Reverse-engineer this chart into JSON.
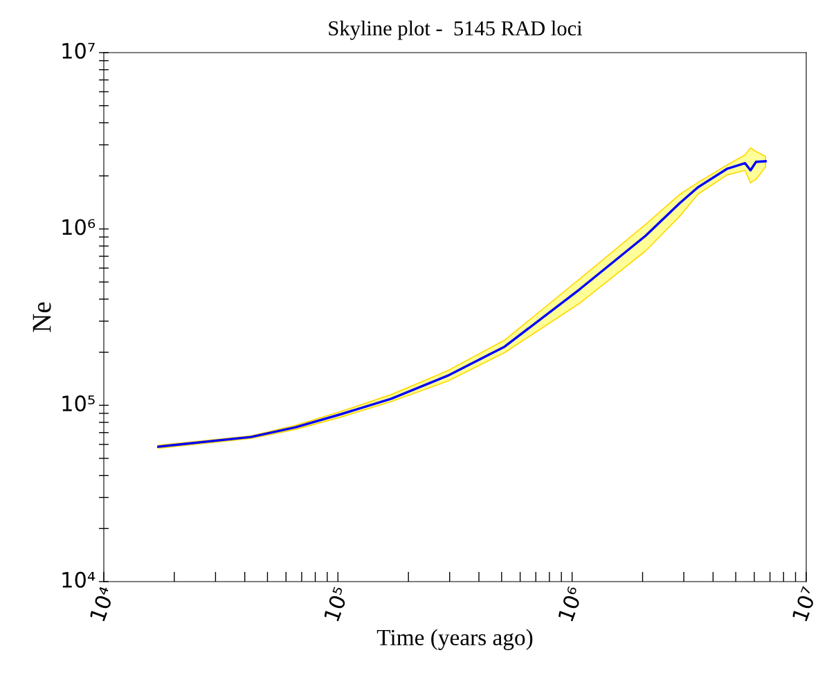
{
  "chart_data": {
    "type": "line",
    "title": "Skyline plot -  5145 RAD loci",
    "xlabel": "Time (years ago)",
    "ylabel": "Ne",
    "log": "xy",
    "grid": false,
    "marker": "none",
    "line_style": "solid",
    "xlim": [
      10000,
      10000000
    ],
    "ylim": [
      10000,
      10000000
    ],
    "xticks": [
      {
        "value": 10000,
        "label": "10⁴"
      },
      {
        "value": 100000,
        "label": "10⁵"
      },
      {
        "value": 1000000,
        "label": "10⁶"
      },
      {
        "value": 10000000,
        "label": "10⁷"
      }
    ],
    "yticks": [
      {
        "value": 10000,
        "label": "10⁴"
      },
      {
        "value": 100000,
        "label": "10⁵"
      },
      {
        "value": 1000000,
        "label": "10⁶"
      },
      {
        "value": 10000000,
        "label": "10⁷"
      }
    ],
    "x": [
      17100,
      42500,
      65900,
      102900,
      169000,
      294000,
      515000,
      1080000,
      2060000,
      2880000,
      3440000,
      4580000,
      5480000,
      5780000,
      6100000,
      6700000
    ],
    "series": [
      {
        "color": "#0000ff",
        "values": [
          58200,
          66100,
          75000,
          89000,
          109000,
          147000,
          215000,
          456000,
          915000,
          1400000,
          1720000,
          2190000,
          2360000,
          2150000,
          2400000,
          2420000
        ],
        "lower": [
          57100,
          64900,
          73000,
          85700,
          105000,
          137000,
          199000,
          380000,
          750000,
          1180000,
          1570000,
          2020000,
          2150000,
          1830000,
          1910000,
          2250000
        ],
        "upper": [
          59300,
          67100,
          76900,
          92200,
          115000,
          157000,
          234000,
          522000,
          1060000,
          1570000,
          1830000,
          2300000,
          2630000,
          2880000,
          2750000,
          2580000
        ]
      }
    ]
  }
}
